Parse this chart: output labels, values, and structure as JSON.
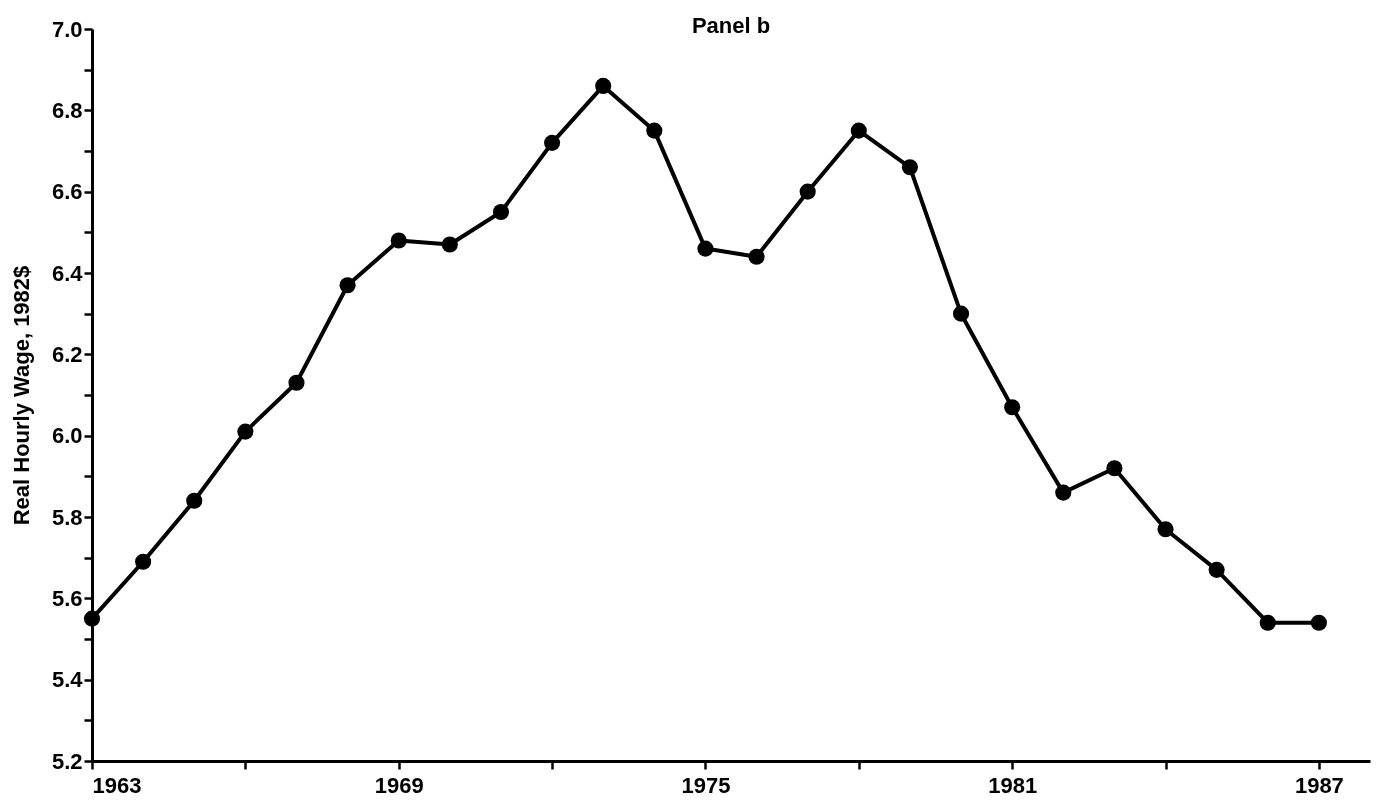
{
  "chart_data": {
    "type": "line",
    "title": "Panel b",
    "ylabel": "Real Hourly Wage,  1982$",
    "x": [
      1963,
      1964,
      1965,
      1966,
      1967,
      1968,
      1969,
      1970,
      1971,
      1972,
      1973,
      1974,
      1975,
      1976,
      1977,
      1978,
      1979,
      1980,
      1981,
      1982,
      1983,
      1984,
      1985,
      1986,
      1987
    ],
    "series": [
      {
        "color": "#000000",
        "values": [
          5.55,
          5.69,
          5.84,
          6.01,
          6.13,
          6.37,
          6.48,
          6.47,
          6.55,
          6.72,
          6.86,
          6.75,
          6.46,
          6.44,
          6.6,
          6.75,
          6.66,
          6.3,
          6.07,
          5.86,
          5.92,
          5.77,
          5.67,
          5.54,
          5.54
        ]
      }
    ],
    "xlim": [
      1963,
      1988
    ],
    "xticks": [
      1963,
      {
        "value": 1966,
        "label": null
      },
      1969,
      {
        "value": 1972,
        "label": null
      },
      1975,
      {
        "value": 1978,
        "label": null
      },
      1981,
      {
        "value": 1984,
        "label": null
      },
      1987
    ],
    "ylim": [
      5.2,
      7.0
    ],
    "yticks": [
      {
        "value": 5.2,
        "label": "5.2"
      },
      {
        "value": 5.3,
        "label": null
      },
      {
        "value": 5.4,
        "label": "5.4"
      },
      {
        "value": 5.5,
        "label": null
      },
      {
        "value": 5.6,
        "label": "5.6"
      },
      {
        "value": 5.7,
        "label": null
      },
      {
        "value": 5.8,
        "label": "5.8"
      },
      {
        "value": 5.9,
        "label": null
      },
      {
        "value": 6.0,
        "label": "6.0"
      },
      {
        "value": 6.1,
        "label": null
      },
      {
        "value": 6.2,
        "label": "6.2"
      },
      {
        "value": 6.3,
        "label": null
      },
      {
        "value": 6.4,
        "label": "6.4"
      },
      {
        "value": 6.5,
        "label": null
      },
      {
        "value": 6.6,
        "label": "6.6"
      },
      {
        "value": 6.7,
        "label": null
      },
      {
        "value": 6.8,
        "label": "6.8"
      },
      {
        "value": 6.9,
        "label": null
      },
      {
        "value": 7.0,
        "label": "7.0"
      }
    ],
    "grid": false,
    "marker": "circle",
    "line_style": "solid"
  }
}
